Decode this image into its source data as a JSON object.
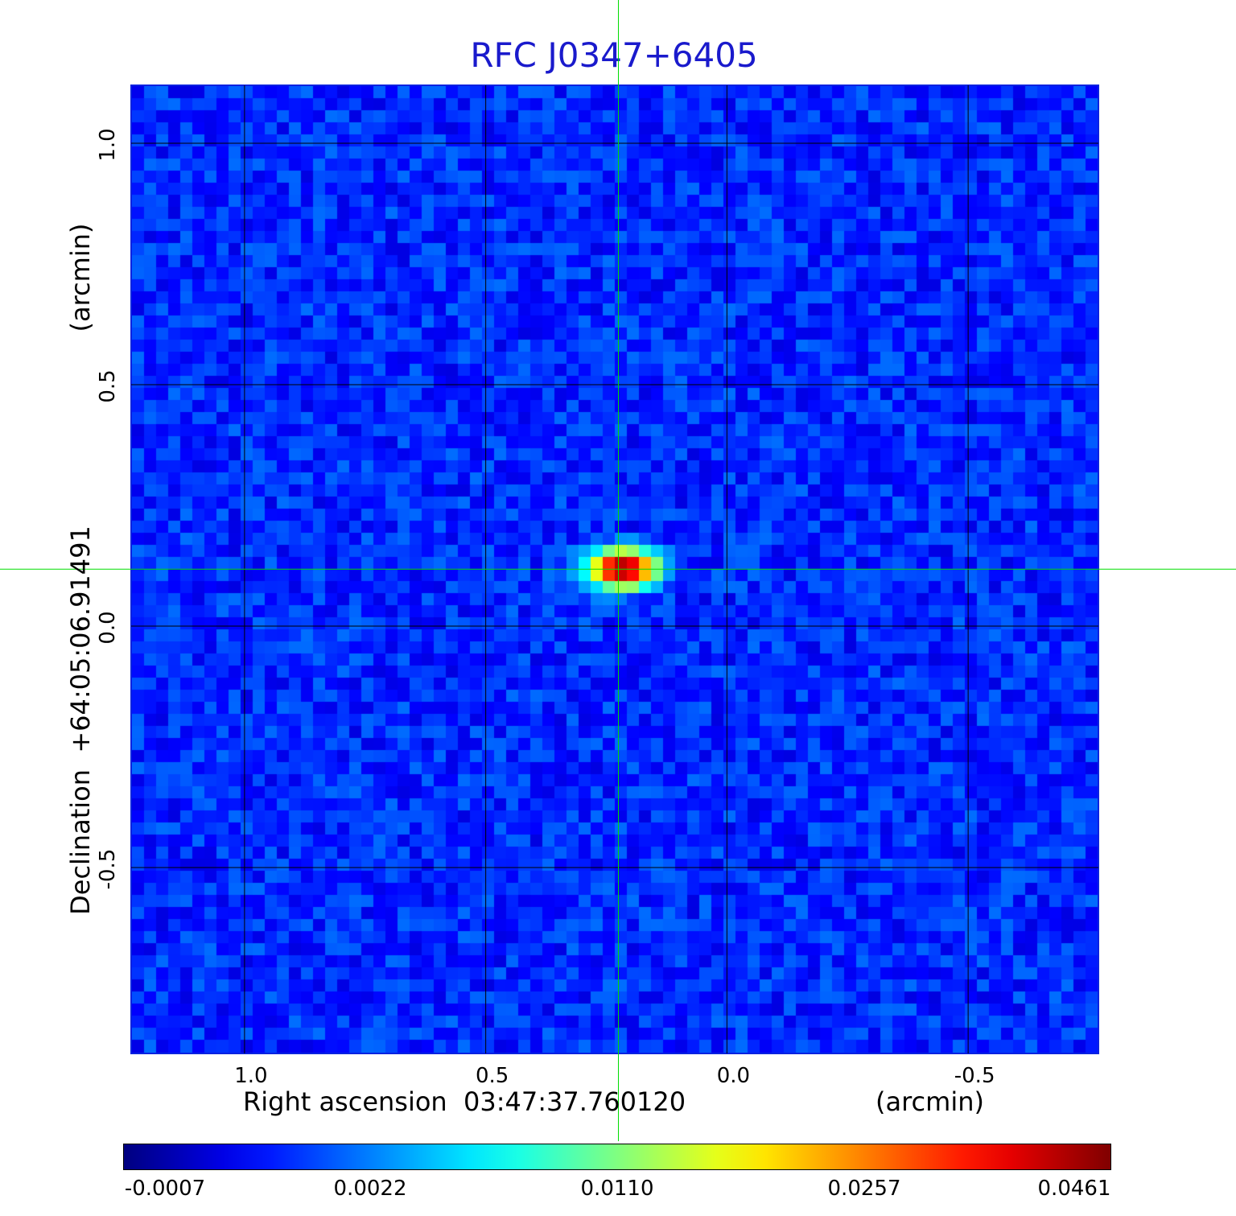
{
  "chart_data": {
    "type": "heatmap",
    "title": "RFC J0347+6405",
    "xlabel": "Right ascension  03:47:37.760120",
    "xunit": "(arcmin)",
    "ylabel": "Declination  +64:05:06.91491",
    "yunit": "(arcmin)",
    "x_ticks": [
      "1.0",
      "0.5",
      "0.0",
      "-0.5"
    ],
    "x_tick_values": [
      1.0,
      0.5,
      0.0,
      -0.5
    ],
    "xlim": [
      1.235,
      -0.77
    ],
    "y_ticks": [
      "1.0",
      "0.5",
      "0.0",
      "-0.5"
    ],
    "y_tick_values": [
      1.0,
      0.5,
      0.0,
      -0.5
    ],
    "ylim": [
      -0.885,
      1.12
    ],
    "grid": true,
    "grid_color": "#000000",
    "colormap": "jet",
    "colorbar_ticks": [
      "-0.0007",
      "0.0022",
      "0.0110",
      "0.0257",
      "0.0461"
    ],
    "colorbar_tick_values": [
      -0.0007,
      0.0022,
      0.011,
      0.0257,
      0.0461
    ],
    "colorbar_position": "bottom",
    "source": {
      "x": 0.215,
      "y": 0.118,
      "peak": 0.0461
    },
    "crosshair": {
      "x": 0.225,
      "y": 0.118,
      "color": "#00dd00"
    },
    "background_level": 0.0012
  }
}
